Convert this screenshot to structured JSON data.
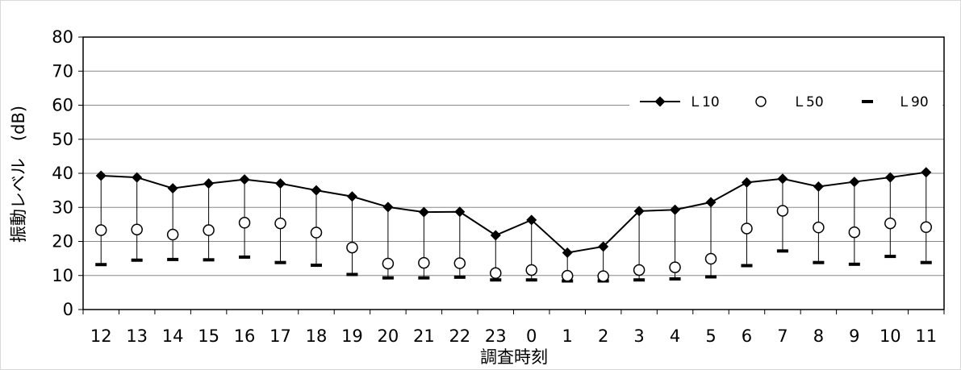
{
  "chart_data": {
    "type": "line",
    "xlabel": "調査時刻",
    "ylabel": "振動レベル　(dB)",
    "ylim": [
      0,
      80
    ],
    "yticks": [
      0,
      10,
      20,
      30,
      40,
      50,
      60,
      70,
      80
    ],
    "grid": true,
    "legend_position": "top-right",
    "categories": [
      "12",
      "13",
      "14",
      "15",
      "16",
      "17",
      "18",
      "19",
      "20",
      "21",
      "22",
      "23",
      "0",
      "1",
      "2",
      "3",
      "4",
      "5",
      "6",
      "7",
      "8",
      "9",
      "10",
      "11"
    ],
    "series": [
      {
        "name": "Ｌ10",
        "marker": "diamond-filled",
        "line": true,
        "values": [
          39.3,
          38.8,
          35.6,
          37.0,
          38.2,
          37.0,
          35.0,
          33.2,
          30.1,
          28.6,
          28.7,
          21.8,
          26.3,
          16.7,
          18.5,
          28.9,
          29.3,
          31.5,
          37.3,
          38.4,
          36.1,
          37.5,
          38.8,
          40.3
        ]
      },
      {
        "name": "Ｌ50",
        "marker": "circle-open",
        "line": false,
        "values": [
          23.3,
          23.5,
          22.0,
          23.3,
          25.5,
          25.3,
          22.6,
          18.2,
          13.5,
          13.7,
          13.6,
          10.7,
          11.6,
          9.9,
          9.8,
          11.6,
          12.4,
          14.9,
          23.8,
          29.0,
          24.1,
          22.7,
          25.3,
          24.2
        ]
      },
      {
        "name": "Ｌ90",
        "marker": "dash",
        "line": false,
        "values": [
          13.2,
          14.5,
          14.7,
          14.6,
          15.4,
          13.8,
          13.0,
          10.3,
          9.3,
          9.3,
          9.5,
          8.7,
          8.7,
          8.4,
          8.4,
          8.7,
          9.0,
          9.6,
          12.9,
          17.2,
          13.8,
          13.3,
          15.6,
          13.8
        ]
      }
    ],
    "colors": {
      "line": "#000000",
      "grid": "#888888",
      "frame": "#000000"
    }
  }
}
